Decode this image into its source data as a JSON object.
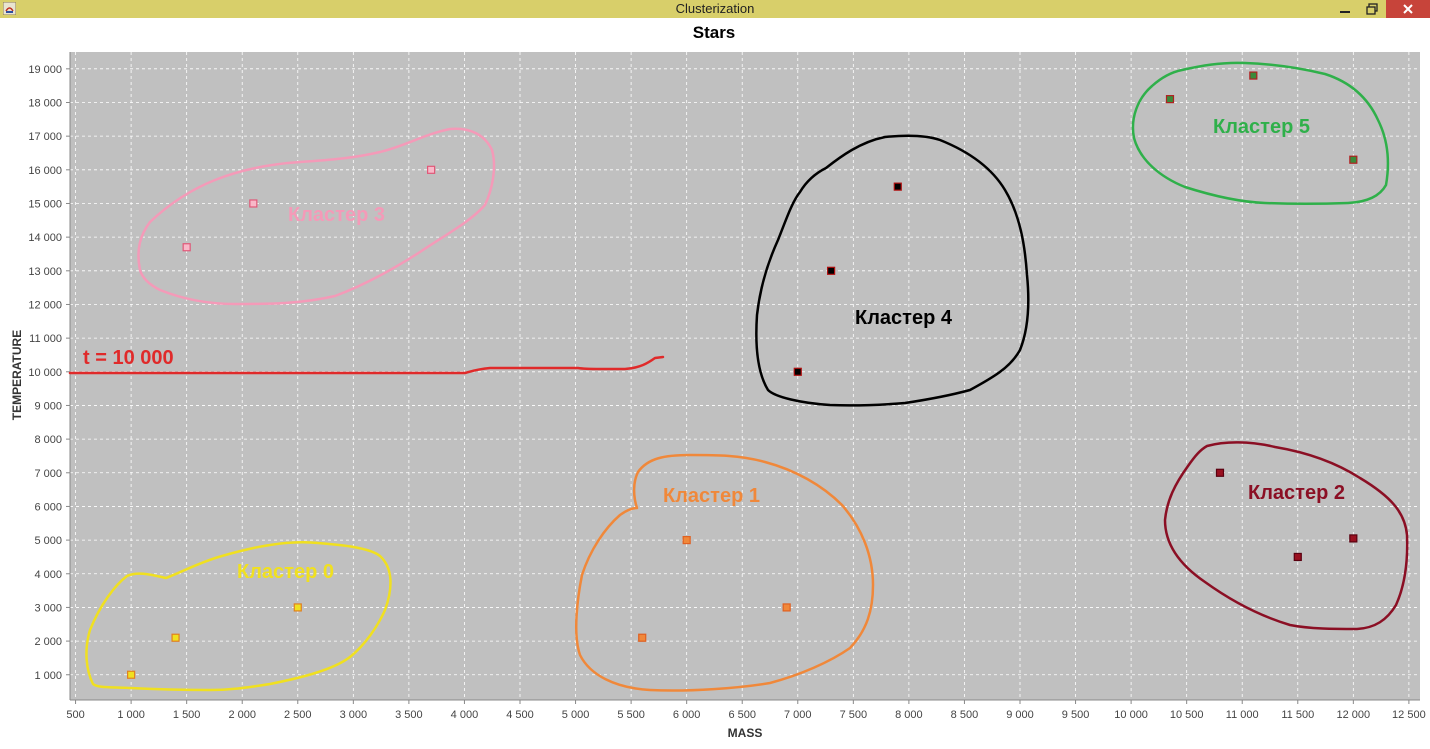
{
  "window": {
    "title": "Clusterization",
    "buttons": [
      "minimize",
      "maximize",
      "close"
    ]
  },
  "colors": {
    "titlebar": "#d8cf6a",
    "plot_background": "#c0c0c0",
    "grid": "#ffffff",
    "cluster0": "#f0e020",
    "cluster1": "#f0883a",
    "cluster2": "#8b0f24",
    "cluster3": "#f49ab8",
    "cluster4": "#000000",
    "cluster5": "#2fb04a",
    "threshold": "#e02a2a"
  },
  "chart_data": {
    "type": "scatter",
    "title": "Stars",
    "xlabel": "MASS",
    "ylabel": "TEMPERATURE",
    "xlim": [
      450,
      12600
    ],
    "ylim": [
      250,
      19500
    ],
    "grid": true,
    "xticks": [
      500,
      1000,
      1500,
      2000,
      2500,
      3000,
      3500,
      4000,
      4500,
      5000,
      5500,
      6000,
      6500,
      7000,
      7500,
      8000,
      8500,
      9000,
      9500,
      10000,
      10500,
      11000,
      11500,
      12000,
      12500
    ],
    "xtick_labels": [
      "500",
      "1 000",
      "1 500",
      "2 000",
      "2 500",
      "3 000",
      "3 500",
      "4 000",
      "4 500",
      "5 000",
      "5 500",
      "6 000",
      "6 500",
      "7 000",
      "7 500",
      "8 000",
      "8 500",
      "9 000",
      "9 500",
      "10 000",
      "10 500",
      "11 000",
      "11 500",
      "12 000",
      "12 500"
    ],
    "yticks": [
      1000,
      2000,
      3000,
      4000,
      5000,
      6000,
      7000,
      8000,
      9000,
      10000,
      11000,
      12000,
      13000,
      14000,
      15000,
      16000,
      17000,
      18000,
      19000
    ],
    "ytick_labels": [
      "1 000",
      "2 000",
      "3 000",
      "4 000",
      "5 000",
      "6 000",
      "7 000",
      "8 000",
      "9 000",
      "10 000",
      "11 000",
      "12 000",
      "13 000",
      "14 000",
      "15 000",
      "16 000",
      "17 000",
      "18 000",
      "19 000"
    ],
    "series": [
      {
        "color": "#f0e020",
        "edge": "#e08020",
        "points": [
          [
            1000,
            1000
          ],
          [
            1400,
            2100
          ],
          [
            2500,
            3000
          ]
        ]
      },
      {
        "color": "#f0883a",
        "edge": "#e06020",
        "points": [
          [
            5600,
            2100
          ],
          [
            6000,
            5000
          ],
          [
            6900,
            3000
          ]
        ]
      },
      {
        "color": "#9a1020",
        "edge": "#5a0010",
        "points": [
          [
            10800,
            7000
          ],
          [
            11500,
            4500
          ],
          [
            12000,
            5050
          ]
        ]
      },
      {
        "color": "#f8b8c8",
        "edge": "#e05878",
        "points": [
          [
            1500,
            13700
          ],
          [
            2100,
            15000
          ],
          [
            3700,
            16000
          ]
        ]
      },
      {
        "color": "#000000",
        "edge": "#b01010",
        "points": [
          [
            7000,
            10000
          ],
          [
            7300,
            13000
          ],
          [
            7900,
            15500
          ]
        ]
      },
      {
        "color": "#3a8a3a",
        "edge": "#b02020",
        "points": [
          [
            10350,
            18100
          ],
          [
            11100,
            18800
          ],
          [
            12000,
            16300
          ]
        ]
      }
    ],
    "annotations": [
      {
        "text": "Кластер 0",
        "color": "#f0e020"
      },
      {
        "text": "Кластер 1",
        "color": "#f0883a"
      },
      {
        "text": "Кластер 2",
        "color": "#8b0f24"
      },
      {
        "text": "Кластер 3",
        "color": "#f49ab8"
      },
      {
        "text": "Кластер 4",
        "color": "#000000"
      },
      {
        "text": "Кластер 5",
        "color": "#2fb04a"
      },
      {
        "text": "t = 10 000",
        "color": "#e02a2a"
      }
    ]
  }
}
